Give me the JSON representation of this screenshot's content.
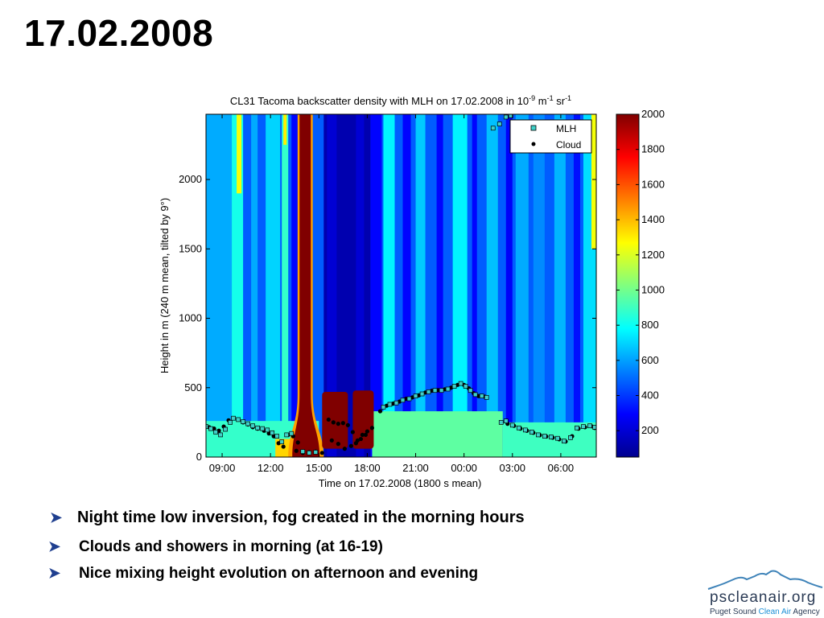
{
  "slide": {
    "title": "17.02.2008"
  },
  "bullets": [
    {
      "text": "Night time low inversion, fog created in the morning hours"
    },
    {
      "text": "Clouds and showers in morning (at 16-19)"
    },
    {
      "text": "Nice mixing height evolution on afternoon and evening"
    }
  ],
  "logo": {
    "name": "pscleanair.org",
    "tag_pre": "Puget Sound ",
    "tag_accent": "Clean Air",
    "tag_post": " Agency",
    "accent_color": "#1b8fd6",
    "icon": "mountain-range-icon"
  },
  "chart_data": {
    "type": "heatmap",
    "title": "CL31 Tacoma backscatter density with MLH on 17.02.2008 in 10",
    "title_exp1": "-9",
    "title_mid": " m",
    "title_exp2": "-1",
    "title_mid2": " sr",
    "title_exp3": "-1",
    "xlabel": "Time on 17.02.2008 (1800 s mean)",
    "ylabel": "Height in m (240 m mean, tilted by 9°)",
    "xlim": [
      8,
      32.2
    ],
    "ylim": [
      0,
      2470
    ],
    "x_ticks": [
      {
        "value": 9,
        "label": "09:00"
      },
      {
        "value": 12,
        "label": "12:00"
      },
      {
        "value": 15,
        "label": "15:00"
      },
      {
        "value": 18,
        "label": "18:00"
      },
      {
        "value": 21,
        "label": "21:00"
      },
      {
        "value": 24,
        "label": "00:00"
      },
      {
        "value": 27,
        "label": "03:00"
      },
      {
        "value": 30,
        "label": "06:00"
      }
    ],
    "y_ticks": [
      {
        "value": 0,
        "label": "0"
      },
      {
        "value": 500,
        "label": "500"
      },
      {
        "value": 1000,
        "label": "1000"
      },
      {
        "value": 1500,
        "label": "1500"
      },
      {
        "value": 2000,
        "label": "2000"
      }
    ],
    "colorbar": {
      "min": 50,
      "max": 2000,
      "ticks": [
        {
          "value": 200,
          "label": "200"
        },
        {
          "value": 400,
          "label": "400"
        },
        {
          "value": 600,
          "label": "600"
        },
        {
          "value": 800,
          "label": "800"
        },
        {
          "value": 1000,
          "label": "1000"
        },
        {
          "value": 1200,
          "label": "1200"
        },
        {
          "value": 1400,
          "label": "1400"
        },
        {
          "value": 1600,
          "label": "1600"
        },
        {
          "value": 1800,
          "label": "1800"
        },
        {
          "value": 2000,
          "label": "2000"
        }
      ]
    },
    "background_value": 470,
    "regions": [
      {
        "x0": 8.0,
        "x1": 9.6,
        "y0": 0,
        "y1": 2470,
        "value": 620
      },
      {
        "x0": 9.6,
        "x1": 10.3,
        "y0": 0,
        "y1": 2470,
        "value": 820
      },
      {
        "x0": 9.9,
        "x1": 10.2,
        "y0": 1900,
        "y1": 2470,
        "value": 1250
      },
      {
        "x0": 10.8,
        "x1": 11.2,
        "y0": 0,
        "y1": 2470,
        "value": 620
      },
      {
        "x0": 11.7,
        "x1": 12.6,
        "y0": 0,
        "y1": 2470,
        "value": 700
      },
      {
        "x0": 12.7,
        "x1": 13.1,
        "y0": 0,
        "y1": 2470,
        "value": 880
      },
      {
        "x0": 12.8,
        "x1": 13.0,
        "y0": 2250,
        "y1": 2470,
        "value": 1300
      },
      {
        "x0": 13.3,
        "x1": 13.7,
        "y0": 0,
        "y1": 2470,
        "value": 300
      },
      {
        "x0": 15.3,
        "x1": 18.2,
        "y0": 0,
        "y1": 2470,
        "value": 120
      },
      {
        "x0": 15.5,
        "x1": 16.1,
        "y0": 0,
        "y1": 2470,
        "value": 200
      },
      {
        "x0": 17.3,
        "x1": 17.8,
        "y0": 0,
        "y1": 2470,
        "value": 200
      },
      {
        "x0": 18.2,
        "x1": 18.9,
        "y0": 0,
        "y1": 2470,
        "value": 300
      },
      {
        "x0": 19.0,
        "x1": 19.7,
        "y0": 0,
        "y1": 2470,
        "value": 760
      },
      {
        "x0": 20.2,
        "x1": 20.7,
        "y0": 0,
        "y1": 2470,
        "value": 300
      },
      {
        "x0": 21.0,
        "x1": 21.6,
        "y0": 0,
        "y1": 2470,
        "value": 680
      },
      {
        "x0": 22.3,
        "x1": 22.7,
        "y0": 0,
        "y1": 2470,
        "value": 300
      },
      {
        "x0": 23.3,
        "x1": 24.2,
        "y0": 0,
        "y1": 2470,
        "value": 760
      },
      {
        "x0": 24.5,
        "x1": 24.8,
        "y0": 0,
        "y1": 2470,
        "value": 300
      },
      {
        "x0": 25.4,
        "x1": 26.1,
        "y0": 0,
        "y1": 2470,
        "value": 660
      },
      {
        "x0": 26.6,
        "x1": 27.0,
        "y0": 0,
        "y1": 2470,
        "value": 280
      },
      {
        "x0": 27.2,
        "x1": 28.0,
        "y0": 0,
        "y1": 2470,
        "value": 620
      },
      {
        "x0": 28.3,
        "x1": 29.0,
        "y0": 0,
        "y1": 2470,
        "value": 560
      },
      {
        "x0": 29.6,
        "x1": 30.3,
        "y0": 0,
        "y1": 2470,
        "value": 640
      },
      {
        "x0": 30.8,
        "x1": 31.2,
        "y0": 0,
        "y1": 2470,
        "value": 320
      },
      {
        "x0": 31.4,
        "x1": 32.2,
        "y0": 0,
        "y1": 2470,
        "value": 720
      },
      {
        "x0": 31.9,
        "x1": 32.2,
        "y0": 1500,
        "y1": 2470,
        "value": 1250
      },
      {
        "x0": 8.0,
        "x1": 15.0,
        "y0": 0,
        "y1": 260,
        "value": 880
      },
      {
        "x0": 18.3,
        "x1": 26.4,
        "y0": 0,
        "y1": 330,
        "value": 960
      },
      {
        "x0": 26.4,
        "x1": 32.2,
        "y0": 0,
        "y1": 250,
        "value": 900
      },
      {
        "x0": 12.3,
        "x1": 13.6,
        "y0": 0,
        "y1": 130,
        "value": 1350
      },
      {
        "x0": 13.9,
        "x1": 14.3,
        "y0": 0,
        "y1": 160,
        "value": 1550
      }
    ],
    "fog_column": {
      "x0_bottom": 13.35,
      "x1_bottom": 15.05,
      "x0_top": 13.8,
      "x1_top": 14.5,
      "taper_height": 450,
      "value": 2000,
      "halo_value": 1450
    },
    "cloud_blocks": [
      {
        "x0": 15.2,
        "x1": 16.8,
        "y0": 60,
        "y1": 470,
        "value": 2000
      },
      {
        "x0": 17.1,
        "x1": 18.4,
        "y0": 60,
        "y1": 480,
        "value": 2000
      }
    ],
    "series": [
      {
        "name": "MLH",
        "marker": "square",
        "points": [
          [
            8.0,
            220
          ],
          [
            8.3,
            205
          ],
          [
            8.6,
            180
          ],
          [
            8.9,
            160
          ],
          [
            9.2,
            200
          ],
          [
            9.5,
            250
          ],
          [
            9.7,
            280
          ],
          [
            10.0,
            270
          ],
          [
            10.3,
            255
          ],
          [
            10.6,
            240
          ],
          [
            10.9,
            225
          ],
          [
            11.2,
            210
          ],
          [
            11.5,
            205
          ],
          [
            11.8,
            195
          ],
          [
            12.1,
            175
          ],
          [
            12.4,
            150
          ],
          [
            12.7,
            110
          ],
          [
            13.0,
            160
          ],
          [
            13.3,
            170
          ],
          [
            14.0,
            40
          ],
          [
            14.4,
            30
          ],
          [
            14.8,
            35
          ],
          [
            19.0,
            360
          ],
          [
            19.4,
            380
          ],
          [
            19.8,
            390
          ],
          [
            20.2,
            410
          ],
          [
            20.6,
            420
          ],
          [
            21.0,
            440
          ],
          [
            21.4,
            455
          ],
          [
            21.8,
            470
          ],
          [
            22.2,
            480
          ],
          [
            22.6,
            480
          ],
          [
            23.0,
            490
          ],
          [
            23.4,
            510
          ],
          [
            23.8,
            530
          ],
          [
            24.1,
            510
          ],
          [
            24.4,
            480
          ],
          [
            24.7,
            450
          ],
          [
            25.1,
            440
          ],
          [
            25.4,
            430
          ],
          [
            25.8,
            2370
          ],
          [
            26.2,
            2400
          ],
          [
            26.6,
            2450
          ],
          [
            26.9,
            2460
          ],
          [
            26.3,
            250
          ],
          [
            26.6,
            260
          ],
          [
            27.0,
            230
          ],
          [
            27.4,
            210
          ],
          [
            27.8,
            195
          ],
          [
            28.2,
            180
          ],
          [
            28.6,
            160
          ],
          [
            29.0,
            150
          ],
          [
            29.4,
            145
          ],
          [
            29.8,
            135
          ],
          [
            30.2,
            115
          ],
          [
            30.6,
            140
          ],
          [
            31.0,
            210
          ],
          [
            31.4,
            220
          ],
          [
            31.8,
            225
          ],
          [
            32.1,
            215
          ]
        ]
      },
      {
        "name": "Cloud",
        "marker": "dot",
        "points": [
          [
            8.2,
            215
          ],
          [
            8.5,
            205
          ],
          [
            8.8,
            190
          ],
          [
            9.1,
            220
          ],
          [
            9.4,
            265
          ],
          [
            9.7,
            280
          ],
          [
            10.0,
            270
          ],
          [
            10.3,
            250
          ],
          [
            10.6,
            235
          ],
          [
            10.9,
            215
          ],
          [
            11.2,
            205
          ],
          [
            11.6,
            190
          ],
          [
            11.9,
            170
          ],
          [
            12.2,
            150
          ],
          [
            12.5,
            100
          ],
          [
            12.8,
            75
          ],
          [
            13.1,
            160
          ],
          [
            13.4,
            150
          ],
          [
            13.7,
            105
          ],
          [
            13.6,
            45
          ],
          [
            14.0,
            30
          ],
          [
            14.4,
            35
          ],
          [
            14.8,
            40
          ],
          [
            15.2,
            30
          ],
          [
            15.6,
            270
          ],
          [
            15.9,
            250
          ],
          [
            16.2,
            240
          ],
          [
            16.5,
            245
          ],
          [
            16.8,
            230
          ],
          [
            17.1,
            180
          ],
          [
            17.4,
            120
          ],
          [
            17.7,
            160
          ],
          [
            18.0,
            185
          ],
          [
            18.3,
            210
          ],
          [
            15.8,
            120
          ],
          [
            16.2,
            95
          ],
          [
            16.6,
            60
          ],
          [
            17.0,
            80
          ],
          [
            17.3,
            100
          ],
          [
            17.6,
            130
          ],
          [
            17.9,
            160
          ],
          [
            18.8,
            330
          ],
          [
            19.2,
            370
          ],
          [
            19.6,
            385
          ],
          [
            20.0,
            400
          ],
          [
            20.4,
            420
          ],
          [
            20.8,
            430
          ],
          [
            21.2,
            445
          ],
          [
            21.6,
            465
          ],
          [
            22.0,
            478
          ],
          [
            22.4,
            482
          ],
          [
            22.8,
            488
          ],
          [
            23.2,
            500
          ],
          [
            23.6,
            520
          ],
          [
            24.0,
            520
          ],
          [
            24.3,
            495
          ],
          [
            24.6,
            460
          ],
          [
            24.9,
            440
          ],
          [
            25.3,
            435
          ],
          [
            26.7,
            240
          ],
          [
            27.1,
            225
          ],
          [
            27.5,
            205
          ],
          [
            27.9,
            190
          ],
          [
            28.3,
            175
          ],
          [
            28.7,
            158
          ],
          [
            29.1,
            148
          ],
          [
            29.5,
            140
          ],
          [
            29.9,
            128
          ],
          [
            30.3,
            112
          ],
          [
            30.7,
            150
          ],
          [
            31.1,
            205
          ],
          [
            31.5,
            215
          ],
          [
            31.9,
            222
          ],
          [
            32.1,
            210
          ]
        ]
      }
    ],
    "legend": {
      "position": "top-right",
      "entries": [
        {
          "label": "MLH",
          "marker": "square",
          "color": "#3fd0c8"
        },
        {
          "label": "Cloud",
          "marker": "dot",
          "color": "#000000"
        }
      ]
    }
  }
}
